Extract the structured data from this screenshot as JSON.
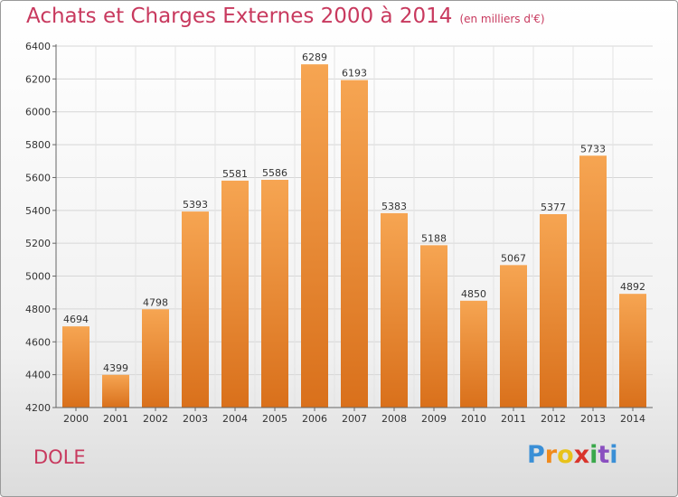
{
  "chart_data": {
    "type": "bar",
    "title": "Achats et Charges Externes 2000 à 2014",
    "unit": "(en milliers d'€)",
    "categories": [
      "2000",
      "2001",
      "2002",
      "2003",
      "2004",
      "2005",
      "2006",
      "2007",
      "2008",
      "2009",
      "2010",
      "2011",
      "2012",
      "2013",
      "2014"
    ],
    "values": [
      4694,
      4399,
      4798,
      5393,
      5581,
      5586,
      6289,
      6193,
      5383,
      5188,
      4850,
      5067,
      5377,
      5733,
      4892
    ],
    "ylim": [
      4200,
      6400
    ],
    "yticks": [
      4200,
      4400,
      4600,
      4800,
      5000,
      5200,
      5400,
      5600,
      5800,
      6000,
      6200,
      6400
    ],
    "grid": true,
    "bar_color_top": "#f6a552",
    "bar_color_bottom": "#d9701b"
  },
  "location": "DOLE",
  "logo": {
    "letters": [
      "P",
      "r",
      "o",
      "x",
      "i",
      "t",
      "i"
    ],
    "colors": [
      "#3a8fd6",
      "#f08a1c",
      "#e8c21a",
      "#d9342b",
      "#3aa84b",
      "#8a4fc0",
      "#3a8fd6"
    ]
  }
}
